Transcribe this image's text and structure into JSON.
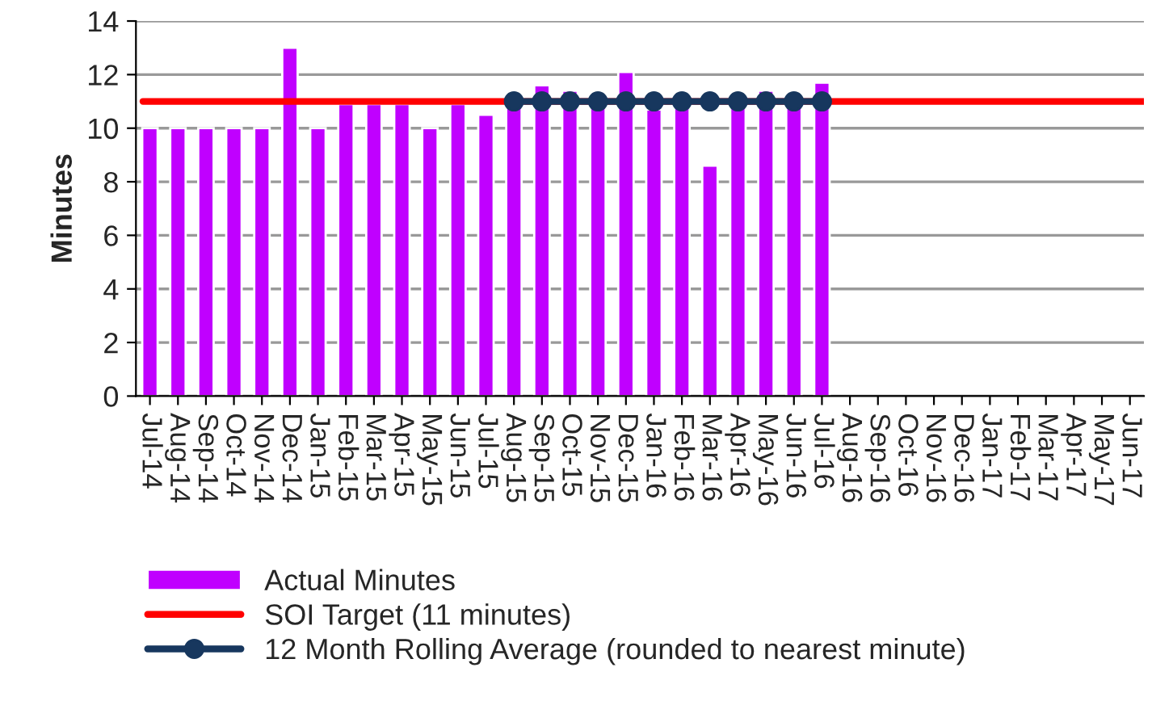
{
  "chart_data": {
    "type": "bar",
    "ylabel": "Minutes",
    "categories": [
      "Jul-14",
      "Aug-14",
      "Sep-14",
      "Oct-14",
      "Nov-14",
      "Dec-14",
      "Jan-15",
      "Feb-15",
      "Mar-15",
      "Apr-15",
      "May-15",
      "Jun-15",
      "Jul-15",
      "Aug-15",
      "Sep-15",
      "Oct-15",
      "Nov-15",
      "Dec-15",
      "Jan-16",
      "Feb-16",
      "Mar-16",
      "Apr-16",
      "May-16",
      "Jun-16",
      "Jul-16",
      "Aug-16",
      "Sep-16",
      "Oct-16",
      "Nov-16",
      "Dec-16",
      "Jan-17",
      "Feb-17",
      "Mar-17",
      "Apr-17",
      "May-17",
      "Jun-17"
    ],
    "series": [
      {
        "name": "Actual Minutes",
        "type": "bar",
        "color": "#c000ff",
        "values": [
          10,
          10,
          10,
          10,
          10,
          13,
          10,
          10.9,
          10.9,
          10.9,
          10,
          10.9,
          10.5,
          10.9,
          11.6,
          11.4,
          10.9,
          12.1,
          10.7,
          10.9,
          8.6,
          10.9,
          11.4,
          10.9,
          11.7,
          null,
          null,
          null,
          null,
          null,
          null,
          null,
          null,
          null,
          null,
          null
        ]
      },
      {
        "name": "12 Month Rolling Average (rounded to nearest minute)",
        "type": "line",
        "color": "#17375e",
        "marker": "circle",
        "values": [
          null,
          null,
          null,
          null,
          null,
          null,
          null,
          null,
          null,
          null,
          null,
          null,
          null,
          11,
          11,
          11,
          11,
          11,
          11,
          11,
          11,
          11,
          11,
          11,
          11,
          null,
          null,
          null,
          null,
          null,
          null,
          null,
          null,
          null,
          null,
          null
        ]
      }
    ],
    "ref_lines": [
      {
        "axis": "y",
        "value": 11,
        "label": "SOI Target (11 minutes)",
        "color": "#ff0000"
      }
    ],
    "ylim": [
      0,
      14
    ],
    "yticks": [
      0,
      2,
      4,
      6,
      8,
      10,
      12,
      14
    ],
    "grid": "y",
    "legend": "bottom"
  }
}
